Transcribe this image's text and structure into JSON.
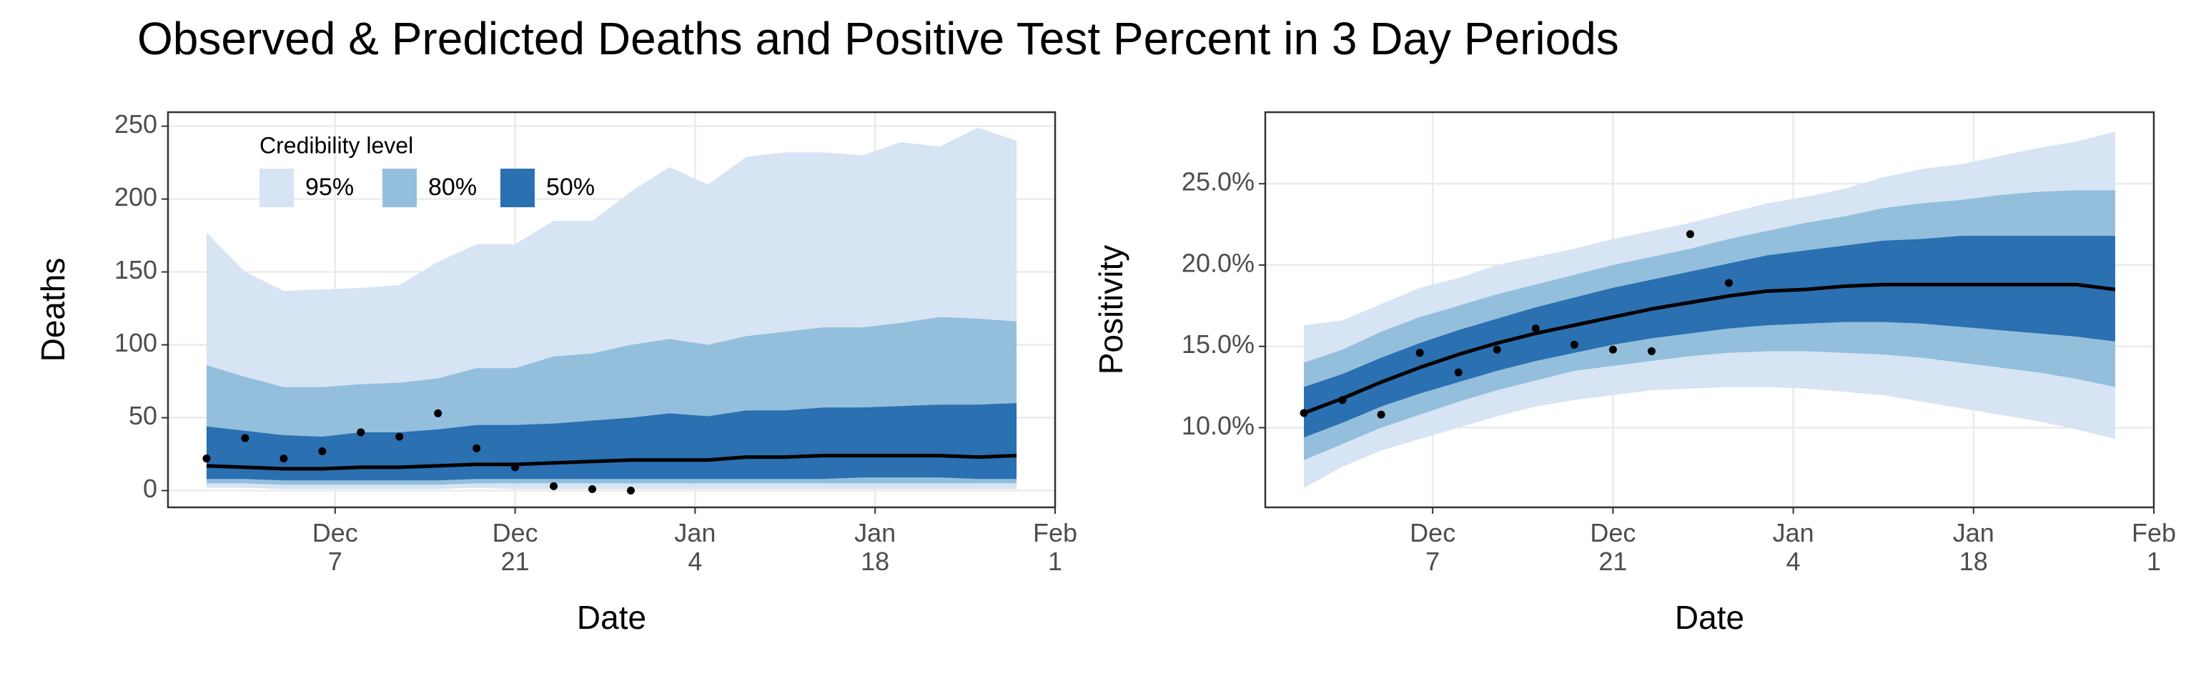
{
  "title": "Observed & Predicted Deaths and Positive Test Percent in 3 Day Periods",
  "chart_data": [
    {
      "type": "band",
      "ylabel": "Deaths",
      "xlabel": "Date",
      "x": [
        "Nov 27",
        "Nov 30",
        "Dec 3",
        "Dec 6",
        "Dec 9",
        "Dec 12",
        "Dec 15",
        "Dec 18",
        "Dec 21",
        "Dec 24",
        "Dec 27",
        "Dec 30",
        "Jan 2",
        "Jan 5",
        "Jan 8",
        "Jan 11",
        "Jan 14",
        "Jan 17",
        "Jan 20",
        "Jan 23",
        "Jan 26",
        "Jan 29"
      ],
      "xlim": [
        "Nov 24",
        "Feb 1"
      ],
      "xticks": [
        {
          "value": "Dec 7",
          "label": "Dec\n7"
        },
        {
          "value": "Dec 21",
          "label": "Dec\n21"
        },
        {
          "value": "Jan 4",
          "label": "Jan\n4"
        },
        {
          "value": "Jan 18",
          "label": "Jan\n18"
        },
        {
          "value": "Feb 1",
          "label": "Feb\n1"
        }
      ],
      "ylim": [
        -11.5,
        259.6
      ],
      "yticks": [
        0,
        50,
        100,
        150,
        200,
        250
      ],
      "grid": true,
      "legend_title": "Credibility level",
      "bands": [
        {
          "name": "95%",
          "color": "#d6e4f4",
          "upper": [
            177,
            150,
            137,
            138,
            139,
            141,
            157,
            169,
            169,
            185,
            185,
            205,
            222,
            210,
            229,
            232,
            232,
            230,
            239,
            236,
            249,
            240
          ],
          "lower": [
            2,
            2,
            1,
            1,
            1,
            1,
            1,
            2,
            1,
            1,
            1,
            1,
            1,
            1,
            1,
            1,
            1,
            1,
            1,
            1,
            1,
            1
          ]
        },
        {
          "name": "80%",
          "color": "#93bfdc",
          "upper": [
            86,
            78,
            71,
            71,
            73,
            74,
            77,
            84,
            84,
            92,
            94,
            100,
            104,
            100,
            106,
            109,
            112,
            112,
            115,
            119,
            118,
            116
          ],
          "lower": [
            5,
            5,
            4,
            4,
            4,
            4,
            4,
            5,
            5,
            5,
            5,
            5,
            5,
            5,
            5,
            5,
            5,
            5,
            5,
            5,
            5,
            5
          ]
        },
        {
          "name": "50%",
          "color": "#2b70b1",
          "upper": [
            44,
            41,
            38,
            37,
            40,
            40,
            42,
            45,
            45,
            46,
            48,
            50,
            53,
            51,
            55,
            55,
            57,
            57,
            58,
            59,
            59,
            60
          ],
          "lower": [
            8,
            8,
            7,
            7,
            7,
            7,
            7,
            8,
            8,
            8,
            8,
            8,
            8,
            8,
            8,
            8,
            8,
            9,
            9,
            9,
            8,
            8
          ]
        }
      ],
      "median": {
        "color": "#000000",
        "values": [
          17,
          16,
          15,
          15,
          16,
          16,
          17,
          18,
          18,
          19,
          20,
          21,
          21,
          21,
          23,
          23,
          24,
          24,
          24,
          24,
          23,
          24
        ]
      },
      "observed": {
        "color": "#000000",
        "values": [
          22,
          36,
          22,
          27,
          40,
          37,
          53,
          29,
          16,
          3,
          1,
          0,
          null,
          null,
          null,
          null,
          null,
          null,
          null,
          null,
          null,
          null
        ]
      }
    },
    {
      "type": "band",
      "ylabel": "Positivity",
      "xlabel": "Date",
      "x": [
        "Nov 27",
        "Nov 30",
        "Dec 3",
        "Dec 6",
        "Dec 9",
        "Dec 12",
        "Dec 15",
        "Dec 18",
        "Dec 21",
        "Dec 24",
        "Dec 27",
        "Dec 30",
        "Jan 2",
        "Jan 5",
        "Jan 8",
        "Jan 11",
        "Jan 14",
        "Jan 17",
        "Jan 20",
        "Jan 23",
        "Jan 26",
        "Jan 29"
      ],
      "xlim": [
        "Nov 24",
        "Feb 1"
      ],
      "xticks": [
        {
          "value": "Dec 7",
          "label": "Dec\n7"
        },
        {
          "value": "Dec 21",
          "label": "Dec\n21"
        },
        {
          "value": "Jan 4",
          "label": "Jan\n4"
        },
        {
          "value": "Jan 18",
          "label": "Jan\n18"
        },
        {
          "value": "Feb 1",
          "label": "Feb\n1"
        }
      ],
      "ylim": [
        5.1,
        29.4
      ],
      "yticks": [
        {
          "value": 10,
          "label": "10.0%"
        },
        {
          "value": 15,
          "label": "15.0%"
        },
        {
          "value": 20,
          "label": "20.0%"
        },
        {
          "value": 25,
          "label": "25.0%"
        }
      ],
      "grid": true,
      "bands": [
        {
          "color": "#d6e4f4",
          "upper": [
            16.3,
            16.6,
            17.6,
            18.6,
            19.2,
            20.0,
            20.5,
            21.0,
            21.6,
            22.1,
            22.6,
            23.2,
            23.8,
            24.2,
            24.7,
            25.4,
            25.9,
            26.2,
            26.7,
            27.2,
            27.6,
            28.2
          ],
          "lower": [
            6.3,
            7.6,
            8.6,
            9.3,
            10.0,
            10.7,
            11.3,
            11.7,
            12.0,
            12.3,
            12.4,
            12.5,
            12.5,
            12.4,
            12.2,
            12.0,
            11.6,
            11.2,
            10.8,
            10.4,
            9.9,
            9.3
          ]
        },
        {
          "color": "#93bfdc",
          "upper": [
            14.0,
            14.8,
            15.9,
            16.8,
            17.5,
            18.2,
            18.8,
            19.4,
            20.0,
            20.5,
            21.0,
            21.6,
            22.1,
            22.6,
            23.0,
            23.5,
            23.8,
            24.0,
            24.3,
            24.5,
            24.6,
            24.6
          ],
          "lower": [
            8.0,
            9.0,
            10.0,
            10.8,
            11.6,
            12.3,
            12.9,
            13.5,
            13.8,
            14.1,
            14.4,
            14.6,
            14.7,
            14.7,
            14.6,
            14.5,
            14.3,
            14.0,
            13.7,
            13.4,
            13.0,
            12.5
          ]
        },
        {
          "color": "#2b70b1",
          "upper": [
            12.5,
            13.3,
            14.3,
            15.2,
            16.0,
            16.7,
            17.4,
            18.0,
            18.6,
            19.1,
            19.6,
            20.1,
            20.6,
            20.9,
            21.2,
            21.5,
            21.6,
            21.8,
            21.8,
            21.8,
            21.8,
            21.8
          ],
          "lower": [
            9.4,
            10.3,
            11.3,
            12.1,
            12.8,
            13.5,
            14.1,
            14.6,
            15.1,
            15.5,
            15.8,
            16.1,
            16.3,
            16.4,
            16.5,
            16.5,
            16.4,
            16.2,
            16.0,
            15.8,
            15.6,
            15.3
          ]
        }
      ],
      "median": {
        "color": "#000000",
        "values": [
          10.9,
          11.8,
          12.8,
          13.7,
          14.5,
          15.2,
          15.8,
          16.3,
          16.8,
          17.3,
          17.7,
          18.1,
          18.4,
          18.5,
          18.7,
          18.8,
          18.8,
          18.8,
          18.8,
          18.8,
          18.8,
          18.5
        ]
      },
      "observed": {
        "color": "#000000",
        "values": [
          10.9,
          11.7,
          10.8,
          14.6,
          13.4,
          14.8,
          16.1,
          15.1,
          14.8,
          14.7,
          21.9,
          18.9,
          null,
          null,
          null,
          null,
          null,
          null,
          null,
          null,
          null,
          null
        ]
      }
    }
  ]
}
